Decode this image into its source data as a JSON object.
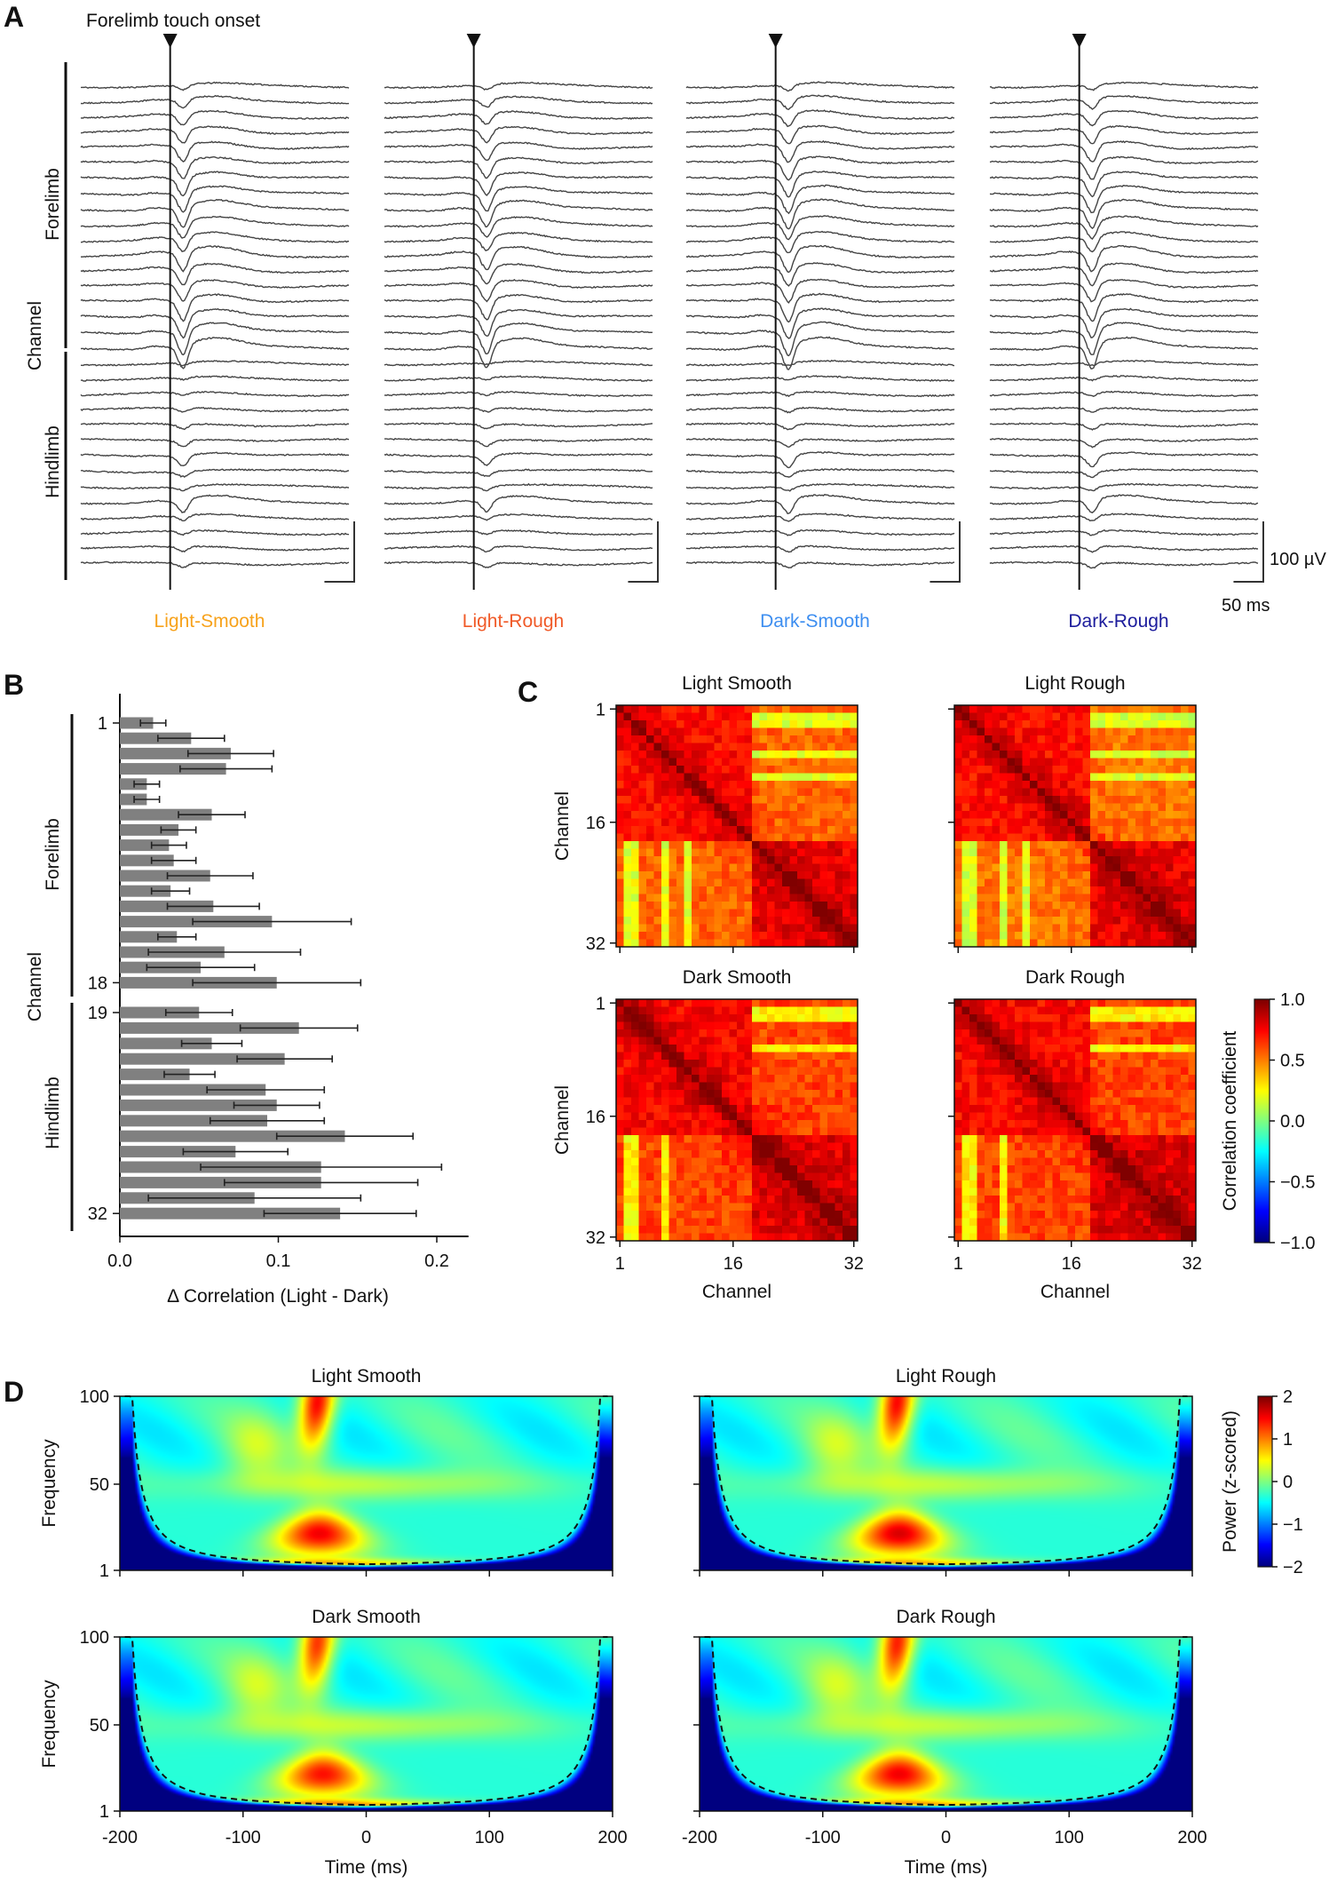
{
  "panel_labels": [
    "A",
    "B",
    "C",
    "D"
  ],
  "chart_data": [
    {
      "type": "line",
      "annotation": "Forelimb touch onset",
      "ylabel": "Channel",
      "group_labels": [
        "Forelimb",
        "Hindlimb"
      ],
      "forelimb_channels": [
        1,
        18
      ],
      "hindlimb_channels": [
        19,
        32
      ],
      "window_ms": [
        -150,
        300
      ],
      "onset_ms": 0,
      "scale_bar": {
        "voltage_label": "100 µV",
        "time_label": "50 ms",
        "voltage_uV": 100,
        "time_ms": 50
      },
      "series": [
        {
          "name": "Light-Smooth",
          "color": "#f7a21b",
          "trough_uV": [
            8,
            16,
            20,
            24,
            28,
            30,
            32,
            34,
            36,
            28,
            26,
            34,
            30,
            30,
            36,
            38,
            42,
            40,
            4,
            4,
            5,
            6,
            8,
            10,
            18,
            8,
            6,
            22,
            8,
            6,
            8,
            7
          ]
        },
        {
          "name": "Light-Rough",
          "color": "#f05a28",
          "trough_uV": [
            8,
            14,
            18,
            22,
            26,
            28,
            30,
            32,
            34,
            26,
            24,
            32,
            28,
            30,
            34,
            36,
            40,
            38,
            3,
            4,
            5,
            6,
            7,
            9,
            16,
            7,
            6,
            20,
            7,
            6,
            8,
            7
          ]
        },
        {
          "name": "Dark-Smooth",
          "color": "#3d8ef0",
          "trough_uV": [
            10,
            18,
            22,
            26,
            30,
            32,
            34,
            36,
            38,
            30,
            28,
            36,
            32,
            32,
            38,
            40,
            44,
            42,
            5,
            5,
            6,
            7,
            9,
            11,
            20,
            9,
            7,
            24,
            9,
            7,
            9,
            8
          ]
        },
        {
          "name": "Dark-Rough",
          "color": "#1c1c9c",
          "trough_uV": [
            9,
            17,
            21,
            25,
            29,
            31,
            33,
            35,
            37,
            29,
            27,
            35,
            31,
            31,
            37,
            39,
            43,
            41,
            5,
            5,
            6,
            7,
            9,
            11,
            19,
            9,
            7,
            23,
            9,
            7,
            9,
            8
          ]
        }
      ]
    },
    {
      "type": "bar",
      "orientation": "horizontal",
      "ylabel": "Channel",
      "group_labels": [
        "Forelimb",
        "Hindlimb"
      ],
      "xlabel": "Δ Correlation (Light - Dark)",
      "xlim": [
        0,
        0.22
      ],
      "xticks": [
        "0.0",
        "0.1",
        "0.2"
      ],
      "ytick_labels": [
        "1",
        "18",
        "19",
        "32"
      ],
      "categories": [
        1,
        2,
        3,
        4,
        5,
        6,
        7,
        8,
        9,
        10,
        11,
        12,
        13,
        14,
        15,
        16,
        17,
        18,
        19,
        20,
        21,
        22,
        23,
        24,
        25,
        26,
        27,
        28,
        29,
        30,
        31,
        32
      ],
      "values": [
        0.021,
        0.045,
        0.07,
        0.067,
        0.017,
        0.017,
        0.058,
        0.037,
        0.031,
        0.034,
        0.057,
        0.032,
        0.059,
        0.096,
        0.036,
        0.066,
        0.051,
        0.099,
        0.05,
        0.113,
        0.058,
        0.104,
        0.044,
        0.092,
        0.099,
        0.093,
        0.142,
        0.073,
        0.127,
        0.127,
        0.085,
        0.139
      ],
      "errors": [
        0.008,
        0.021,
        0.027,
        0.029,
        0.008,
        0.008,
        0.021,
        0.011,
        0.011,
        0.014,
        0.027,
        0.012,
        0.029,
        0.05,
        0.012,
        0.048,
        0.034,
        0.053,
        0.021,
        0.037,
        0.019,
        0.03,
        0.016,
        0.037,
        0.027,
        0.036,
        0.043,
        0.033,
        0.076,
        0.061,
        0.067,
        0.048
      ],
      "bar_color": "#808080"
    },
    {
      "type": "heatmap",
      "xlabel": "Channel",
      "ylabel": "Channel",
      "ticks": [
        "1",
        "16",
        "32"
      ],
      "colormap": "jet",
      "colorbar": {
        "label": "Correlation coefficient",
        "range": [
          -1,
          1
        ],
        "ticks": [
          "1.0",
          "0.5",
          "0.0",
          "−0.5",
          "−1.0"
        ]
      },
      "panels": [
        {
          "title": "Light Smooth",
          "block_means": {
            "forelimb": 0.72,
            "hindlimb": 0.78,
            "cross": 0.55
          },
          "low_channels": [
            2,
            3,
            7,
            10
          ]
        },
        {
          "title": "Light Rough",
          "block_means": {
            "forelimb": 0.72,
            "hindlimb": 0.78,
            "cross": 0.52
          },
          "low_channels": [
            2,
            3,
            7,
            10
          ]
        },
        {
          "title": "Dark Smooth",
          "block_means": {
            "forelimb": 0.74,
            "hindlimb": 0.8,
            "cross": 0.62
          },
          "low_channels": [
            2,
            3,
            7
          ]
        },
        {
          "title": "Dark Rough",
          "block_means": {
            "forelimb": 0.74,
            "hindlimb": 0.8,
            "cross": 0.62
          },
          "low_channels": [
            2,
            3,
            7
          ]
        }
      ]
    },
    {
      "type": "heatmap",
      "xlabel": "Time (ms)",
      "ylabel": "Frequency",
      "xlim": [
        -200,
        200
      ],
      "ylim": [
        1,
        100
      ],
      "xticks": [
        "-200",
        "-100",
        "0",
        "100",
        "200"
      ],
      "yticks": [
        "100",
        "50",
        "1"
      ],
      "colormap": "jet",
      "colorbar": {
        "label": "Power (z-scored)",
        "range": [
          -2,
          2
        ],
        "ticks": [
          "2",
          "1",
          "0",
          "−1",
          "−2"
        ]
      },
      "panels": [
        {
          "title": "Light Smooth",
          "features": [
            {
              "time_ms": -40,
              "freq_Hz": 95,
              "z": 2.0
            },
            {
              "time_ms": -38,
              "freq_Hz": 22,
              "z": 1.9
            },
            {
              "time_ms": -30,
              "freq_Hz": 4,
              "z": 1.0
            }
          ]
        },
        {
          "title": "Light Rough",
          "features": [
            {
              "time_ms": -40,
              "freq_Hz": 95,
              "z": 2.0
            },
            {
              "time_ms": -38,
              "freq_Hz": 22,
              "z": 2.0
            },
            {
              "time_ms": -30,
              "freq_Hz": 4,
              "z": 1.0
            }
          ]
        },
        {
          "title": "Dark Smooth",
          "features": [
            {
              "time_ms": -40,
              "freq_Hz": 95,
              "z": 1.8
            },
            {
              "time_ms": -35,
              "freq_Hz": 22,
              "z": 1.8
            },
            {
              "time_ms": -30,
              "freq_Hz": 4,
              "z": 1.2
            }
          ]
        },
        {
          "title": "Dark Rough",
          "features": [
            {
              "time_ms": -40,
              "freq_Hz": 95,
              "z": 1.9
            },
            {
              "time_ms": -38,
              "freq_Hz": 22,
              "z": 1.9
            },
            {
              "time_ms": -30,
              "freq_Hz": 4,
              "z": 1.1
            }
          ]
        }
      ]
    }
  ]
}
